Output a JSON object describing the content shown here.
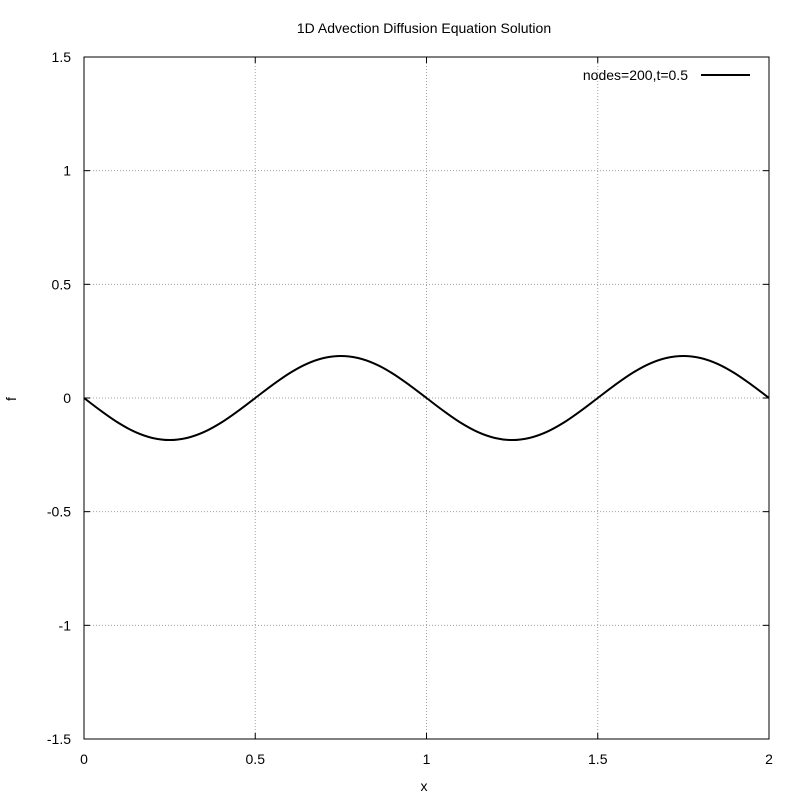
{
  "chart_data": {
    "type": "line",
    "title": "1D Advection Diffusion Equation Solution",
    "xlabel": "x",
    "ylabel": "f",
    "xlim": [
      0,
      2
    ],
    "ylim": [
      -1.5,
      1.5
    ],
    "xticks": [
      {
        "value": 0,
        "label": "0"
      },
      {
        "value": 0.5,
        "label": "0.5"
      },
      {
        "value": 1,
        "label": "1"
      },
      {
        "value": 1.5,
        "label": "1.5"
      },
      {
        "value": 2,
        "label": "2"
      }
    ],
    "yticks": [
      {
        "value": -1.5,
        "label": "-1.5"
      },
      {
        "value": -1,
        "label": "-1"
      },
      {
        "value": -0.5,
        "label": "-0.5"
      },
      {
        "value": 0,
        "label": "0"
      },
      {
        "value": 0.5,
        "label": "0.5"
      },
      {
        "value": 1,
        "label": "1"
      },
      {
        "value": 1.5,
        "label": "1.5"
      }
    ],
    "grid": true,
    "legend_position": "top-right",
    "series": [
      {
        "name": "nodes=200,t=0.5",
        "color": "#000000",
        "x": [
          0,
          0.05,
          0.1,
          0.15,
          0.2,
          0.25,
          0.3,
          0.35,
          0.4,
          0.45,
          0.5,
          0.55,
          0.6,
          0.65,
          0.7,
          0.75,
          0.8,
          0.85,
          0.9,
          0.95,
          1.0,
          1.05,
          1.1,
          1.15,
          1.2,
          1.25,
          1.3,
          1.35,
          1.4,
          1.45,
          1.5,
          1.55,
          1.6,
          1.65,
          1.7,
          1.75,
          1.8,
          1.85,
          1.9,
          1.95,
          2.0
        ],
        "y": [
          0,
          -0.057,
          -0.109,
          -0.15,
          -0.176,
          -0.185,
          -0.176,
          -0.15,
          -0.109,
          -0.057,
          0,
          0.057,
          0.109,
          0.15,
          0.176,
          0.185,
          0.176,
          0.15,
          0.109,
          0.057,
          0,
          -0.057,
          -0.109,
          -0.15,
          -0.176,
          -0.185,
          -0.176,
          -0.15,
          -0.109,
          -0.057,
          0,
          0.057,
          0.109,
          0.15,
          0.176,
          0.185,
          0.176,
          0.15,
          0.109,
          0.057,
          0
        ]
      }
    ]
  }
}
